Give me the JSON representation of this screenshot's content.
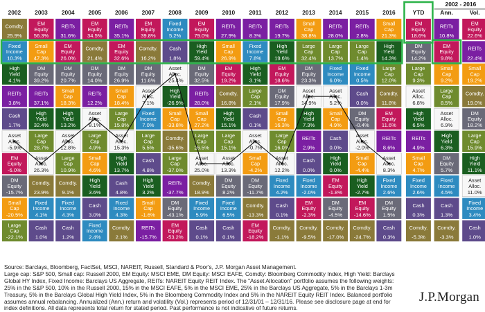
{
  "chart_data": {
    "type": "table",
    "header": {
      "years": [
        "2002",
        "2003",
        "2004",
        "2005",
        "2006",
        "2007",
        "2008",
        "2009",
        "2010",
        "2011",
        "2012",
        "2013",
        "2014",
        "2015",
        "2016"
      ],
      "ytd": "YTD",
      "period_label": "2002 - 2016",
      "ann": "Ann.",
      "vol": "Vol."
    },
    "asset_colors": {
      "Comdty.": "#8a7a3a",
      "EM Equity": "#c2185b",
      "REITs": "#7b1fa2",
      "Fixed Income": "#2e8bc0",
      "Small Cap": "#f39c12",
      "Large Cap": "#6f8b2e",
      "High Yield": "#1a5e20",
      "DM Equity": "#6a6a78",
      "Cash": "#5e4b8b",
      "Asset Alloc.": "#f7f7f7"
    },
    "year_columns": [
      [
        [
          "Comdty.",
          "25.9%"
        ],
        [
          "Fixed Income",
          "10.3%"
        ],
        [
          "High Yield",
          "4.1%"
        ],
        [
          "REITs",
          "3.8%"
        ],
        [
          "Cash",
          "1.7%"
        ],
        [
          "Asset Alloc.",
          "-5.9%"
        ],
        [
          "EM Equity",
          "-6.0%"
        ],
        [
          "DM Equity",
          "-15.7%"
        ],
        [
          "Small Cap",
          "-20.5%"
        ],
        [
          "Large Cap",
          "-22.1%"
        ]
      ],
      [
        [
          "EM Equity",
          "56.3%"
        ],
        [
          "Small Cap",
          "47.3%"
        ],
        [
          "DM Equity",
          "39.2%"
        ],
        [
          "REITs",
          "37.1%"
        ],
        [
          "High Yield",
          "32.4%"
        ],
        [
          "Large Cap",
          "28.7%"
        ],
        [
          "Asset Alloc.",
          "26.3%"
        ],
        [
          "Comdty.",
          "23.9%"
        ],
        [
          "Fixed Income",
          "4.1%"
        ],
        [
          "Cash",
          "1.0%"
        ]
      ],
      [
        [
          "REITs",
          "31.6%"
        ],
        [
          "EM Equity",
          "26.0%"
        ],
        [
          "DM Equity",
          "20.7%"
        ],
        [
          "Small Cap",
          "18.3%"
        ],
        [
          "High Yield",
          "13.2%"
        ],
        [
          "Asset Alloc.",
          "12.8%"
        ],
        [
          "Large Cap",
          "10.9%"
        ],
        [
          "Comdty.",
          "9.1%"
        ],
        [
          "Fixed Income",
          "4.3%"
        ],
        [
          "Cash",
          "1.2%"
        ]
      ],
      [
        [
          "EM Equity",
          "34.5%"
        ],
        [
          "Comdty.",
          "21.4%"
        ],
        [
          "DM Equity",
          "14.0%"
        ],
        [
          "REITs",
          "12.2%"
        ],
        [
          "Asset Alloc.",
          "8.1%"
        ],
        [
          "Large Cap",
          "4.9%"
        ],
        [
          "Small Cap",
          "4.6%"
        ],
        [
          "High Yield",
          "3.6%"
        ],
        [
          "Cash",
          "3.0%"
        ],
        [
          "Fixed Income",
          "2.4%"
        ]
      ],
      [
        [
          "REITs",
          "35.1%"
        ],
        [
          "EM Equity",
          "32.6%"
        ],
        [
          "DM Equity",
          "26.9%"
        ],
        [
          "Small Cap",
          "18.4%"
        ],
        [
          "Large Cap",
          "15.8%"
        ],
        [
          "Asset Alloc.",
          "15.3%"
        ],
        [
          "High Yield",
          "13.7%"
        ],
        [
          "Cash",
          "4.8%"
        ],
        [
          "Fixed Income",
          "4.3%"
        ],
        [
          "Comdty.",
          "2.1%"
        ]
      ],
      [
        [
          "EM Equity",
          "39.8%"
        ],
        [
          "Comdty.",
          "16.2%"
        ],
        [
          "DM Equity",
          "11.6%"
        ],
        [
          "Asset Alloc.",
          "7.1%"
        ],
        [
          "Fixed Income",
          "7.0%"
        ],
        [
          "Large Cap",
          "5.5%"
        ],
        [
          "Cash",
          "4.8%"
        ],
        [
          "High Yield",
          "3.2%"
        ],
        [
          "Small Cap",
          "-1.6%"
        ],
        [
          "REITs",
          "-15.7%"
        ]
      ],
      [
        [
          "Fixed Income",
          "5.2%"
        ],
        [
          "Cash",
          "1.8%"
        ],
        [
          "Asset Alloc.",
          "-25.4%"
        ],
        [
          "High Yield",
          "-26.9%"
        ],
        [
          "Small Cap",
          "-33.8%"
        ],
        [
          "Comdty.",
          "-35.6%"
        ],
        [
          "Large Cap",
          "-37.0%"
        ],
        [
          "REITs",
          "-37.7%"
        ],
        [
          "DM Equity",
          "-43.1%"
        ],
        [
          "EM Equity",
          "-53.2%"
        ]
      ],
      [
        [
          "EM Equity",
          "79.0%"
        ],
        [
          "High Yield",
          "59.4%"
        ],
        [
          "DM Equity",
          "32.5%"
        ],
        [
          "REITs",
          "28.0%"
        ],
        [
          "Small Cap",
          "27.2%"
        ],
        [
          "Large Cap",
          "26.5%"
        ],
        [
          "Asset Alloc.",
          "25.0%"
        ],
        [
          "Comdty.",
          "18.9%"
        ],
        [
          "Fixed Income",
          "5.9%"
        ],
        [
          "Cash",
          "0.1%"
        ]
      ],
      [
        [
          "REITs",
          "27.9%"
        ],
        [
          "Small Cap",
          "26.9%"
        ],
        [
          "EM Equity",
          "19.2%"
        ],
        [
          "Comdty.",
          "16.8%"
        ],
        [
          "High Yield",
          "15.1%"
        ],
        [
          "Large Cap",
          "15.1%"
        ],
        [
          "Asset Alloc.",
          "13.3%"
        ],
        [
          "DM Equity",
          "8.2%"
        ],
        [
          "Fixed Income",
          "6.5%"
        ],
        [
          "Cash",
          "0.1%"
        ]
      ],
      [
        [
          "REITs",
          "8.3%"
        ],
        [
          "Fixed Income",
          "7.8%"
        ],
        [
          "High Yield",
          "3.1%"
        ],
        [
          "Large Cap",
          "2.1%"
        ],
        [
          "Cash",
          "0.1%"
        ],
        [
          "Asset Alloc.",
          "-0.7%"
        ],
        [
          "Small Cap",
          "-4.2%"
        ],
        [
          "DM Equity",
          "-11.7%"
        ],
        [
          "Comdty.",
          "-13.3%"
        ],
        [
          "EM Equity",
          "-18.2%"
        ]
      ],
      [
        [
          "REITs",
          "19.7%"
        ],
        [
          "High Yield",
          "19.6%"
        ],
        [
          "EM Equity",
          "18.6%"
        ],
        [
          "DM Equity",
          "17.9%"
        ],
        [
          "Small Cap",
          "16.3%"
        ],
        [
          "Large Cap",
          "16.0%"
        ],
        [
          "Asset Alloc.",
          "12.2%"
        ],
        [
          "Fixed Income",
          "4.2%"
        ],
        [
          "Cash",
          "0.1%"
        ],
        [
          "Comdty.",
          "-1.1%"
        ]
      ],
      [
        [
          "Small Cap",
          "38.8%"
        ],
        [
          "Large Cap",
          "32.4%"
        ],
        [
          "DM Equity",
          "23.3%"
        ],
        [
          "Asset Alloc.",
          "14.9%"
        ],
        [
          "High Yield",
          "7.3%"
        ],
        [
          "REITs",
          "2.9%"
        ],
        [
          "Cash",
          "0.0%"
        ],
        [
          "Fixed Income",
          "-2.0%"
        ],
        [
          "EM Equity",
          "-2.3%"
        ],
        [
          "Comdty.",
          "-9.5%"
        ]
      ],
      [
        [
          "REITs",
          "28.0%"
        ],
        [
          "Large Cap",
          "13.7%"
        ],
        [
          "Fixed Income",
          "6.0%"
        ],
        [
          "Asset Alloc.",
          "5.2%"
        ],
        [
          "Small Cap",
          "4.9%"
        ],
        [
          "Cash",
          "0.0%"
        ],
        [
          "High Yield",
          "0.0%"
        ],
        [
          "EM Equity",
          "-1.8%"
        ],
        [
          "DM Equity",
          "-4.5%"
        ],
        [
          "Comdty.",
          "-17.0%"
        ]
      ],
      [
        [
          "REITs",
          "2.8%"
        ],
        [
          "Large Cap",
          "1.4%"
        ],
        [
          "Fixed Income",
          "0.5%"
        ],
        [
          "Cash",
          "0.0%"
        ],
        [
          "DM Equity",
          "-0.4%"
        ],
        [
          "Asset Alloc.",
          "-2.0%"
        ],
        [
          "Small Cap",
          "-4.4%"
        ],
        [
          "High Yield",
          "-2.7%"
        ],
        [
          "EM Equity",
          "-14.6%"
        ],
        [
          "Comdty.",
          "-24.7%"
        ]
      ],
      [
        [
          "Small Cap",
          "21.3%"
        ],
        [
          "High Yield",
          "14.3%"
        ],
        [
          "Large Cap",
          "12.0%"
        ],
        [
          "Comdty.",
          "11.8%"
        ],
        [
          "EM Equity",
          "11.6%"
        ],
        [
          "REITs",
          "8.6%"
        ],
        [
          "Asset Alloc.",
          "8.3%"
        ],
        [
          "Fixed Income",
          "2.6%"
        ],
        [
          "DM Equity",
          "1.5%"
        ],
        [
          "Cash",
          "0.3%"
        ]
      ]
    ],
    "ytd_column": [
      [
        "EM Equity",
        "18.6%"
      ],
      [
        "DM Equity",
        "14.2%"
      ],
      [
        "Large Cap",
        "9.3%"
      ],
      [
        "Asset Alloc.",
        "6.8%"
      ],
      [
        "High Yield",
        "6.5%"
      ],
      [
        "REITs",
        "4.9%"
      ],
      [
        "Small Cap",
        "4.7%"
      ],
      [
        "Fixed Income",
        "2.6%"
      ],
      [
        "Cash",
        "0.3%"
      ],
      [
        "Comdty.",
        "-5.3%"
      ]
    ],
    "ann_column": [
      [
        "REITs",
        "10.8%"
      ],
      [
        "EM Equity",
        "9.8%"
      ],
      [
        "Small Cap",
        "9.2%"
      ],
      [
        "Large Cap",
        "8.5%"
      ],
      [
        "Asset Alloc.",
        "6.9%"
      ],
      [
        "High Yield",
        "6.3%"
      ],
      [
        "DM Equity",
        "5.7%"
      ],
      [
        "Fixed Income",
        "4.5%"
      ],
      [
        "Cash",
        "1.3%"
      ],
      [
        "Comdty.",
        "-3.3%"
      ]
    ],
    "vol_column": [
      [
        "EM Equity",
        "22.6%"
      ],
      [
        "REITs",
        "22.4%"
      ],
      [
        "Small Cap",
        "19.2%"
      ],
      [
        "Comdty.",
        "19.0%"
      ],
      [
        "DM Equity",
        "18.2%"
      ],
      [
        "Large Cap",
        "15.9%"
      ],
      [
        "High Yield",
        "11.1%"
      ],
      [
        "Asset Alloc.",
        "11.0%"
      ],
      [
        "Fixed Income",
        "3.4%"
      ],
      [
        "Cash",
        "1.0%"
      ]
    ]
  },
  "footnote": {
    "line1": "Source: Barclays, Bloomberg, FactSet, MSCI, NAREIT, Russell, Standard & Poor's, J.P. Morgan Asset Management.",
    "line2": "Large cap: S&P 500, Small cap: Russell 2000, EM Equity: MSCI EME, DM Equity: MSCI EAFE, Comdty: Bloomberg Commodity Index, High Yield: Barclays Global HY Index, Fixed Income: Barclays US Aggregate, REITs: NAREIT Equity REIT Index. The \"Asset Allocation\" portfolio assumes the following weights: 25% in the S&P 500, 10% in the Russell 2000, 15% in the MSCI EAFE, 5% in the MSCI EME, 25% in the Barclays US Aggregate, 5% in the Barclays 1-3m Treasury, 5% in the Barclays Global High Yield Index, 5% in the Bloomberg Commodity Index and 5% in the NAREIT Equity REIT Index. Balanced portfolio assumes annual rebalancing. Annualized (Ann.) return and volatility (Vol.) represents period of 12/31/01 – 12/31/16. Please see disclosure page at end for index definitions. All data represents total return for stated period. Past performance is not indicative of future returns."
  },
  "logo": {
    "text": "J.P.Morgan"
  }
}
